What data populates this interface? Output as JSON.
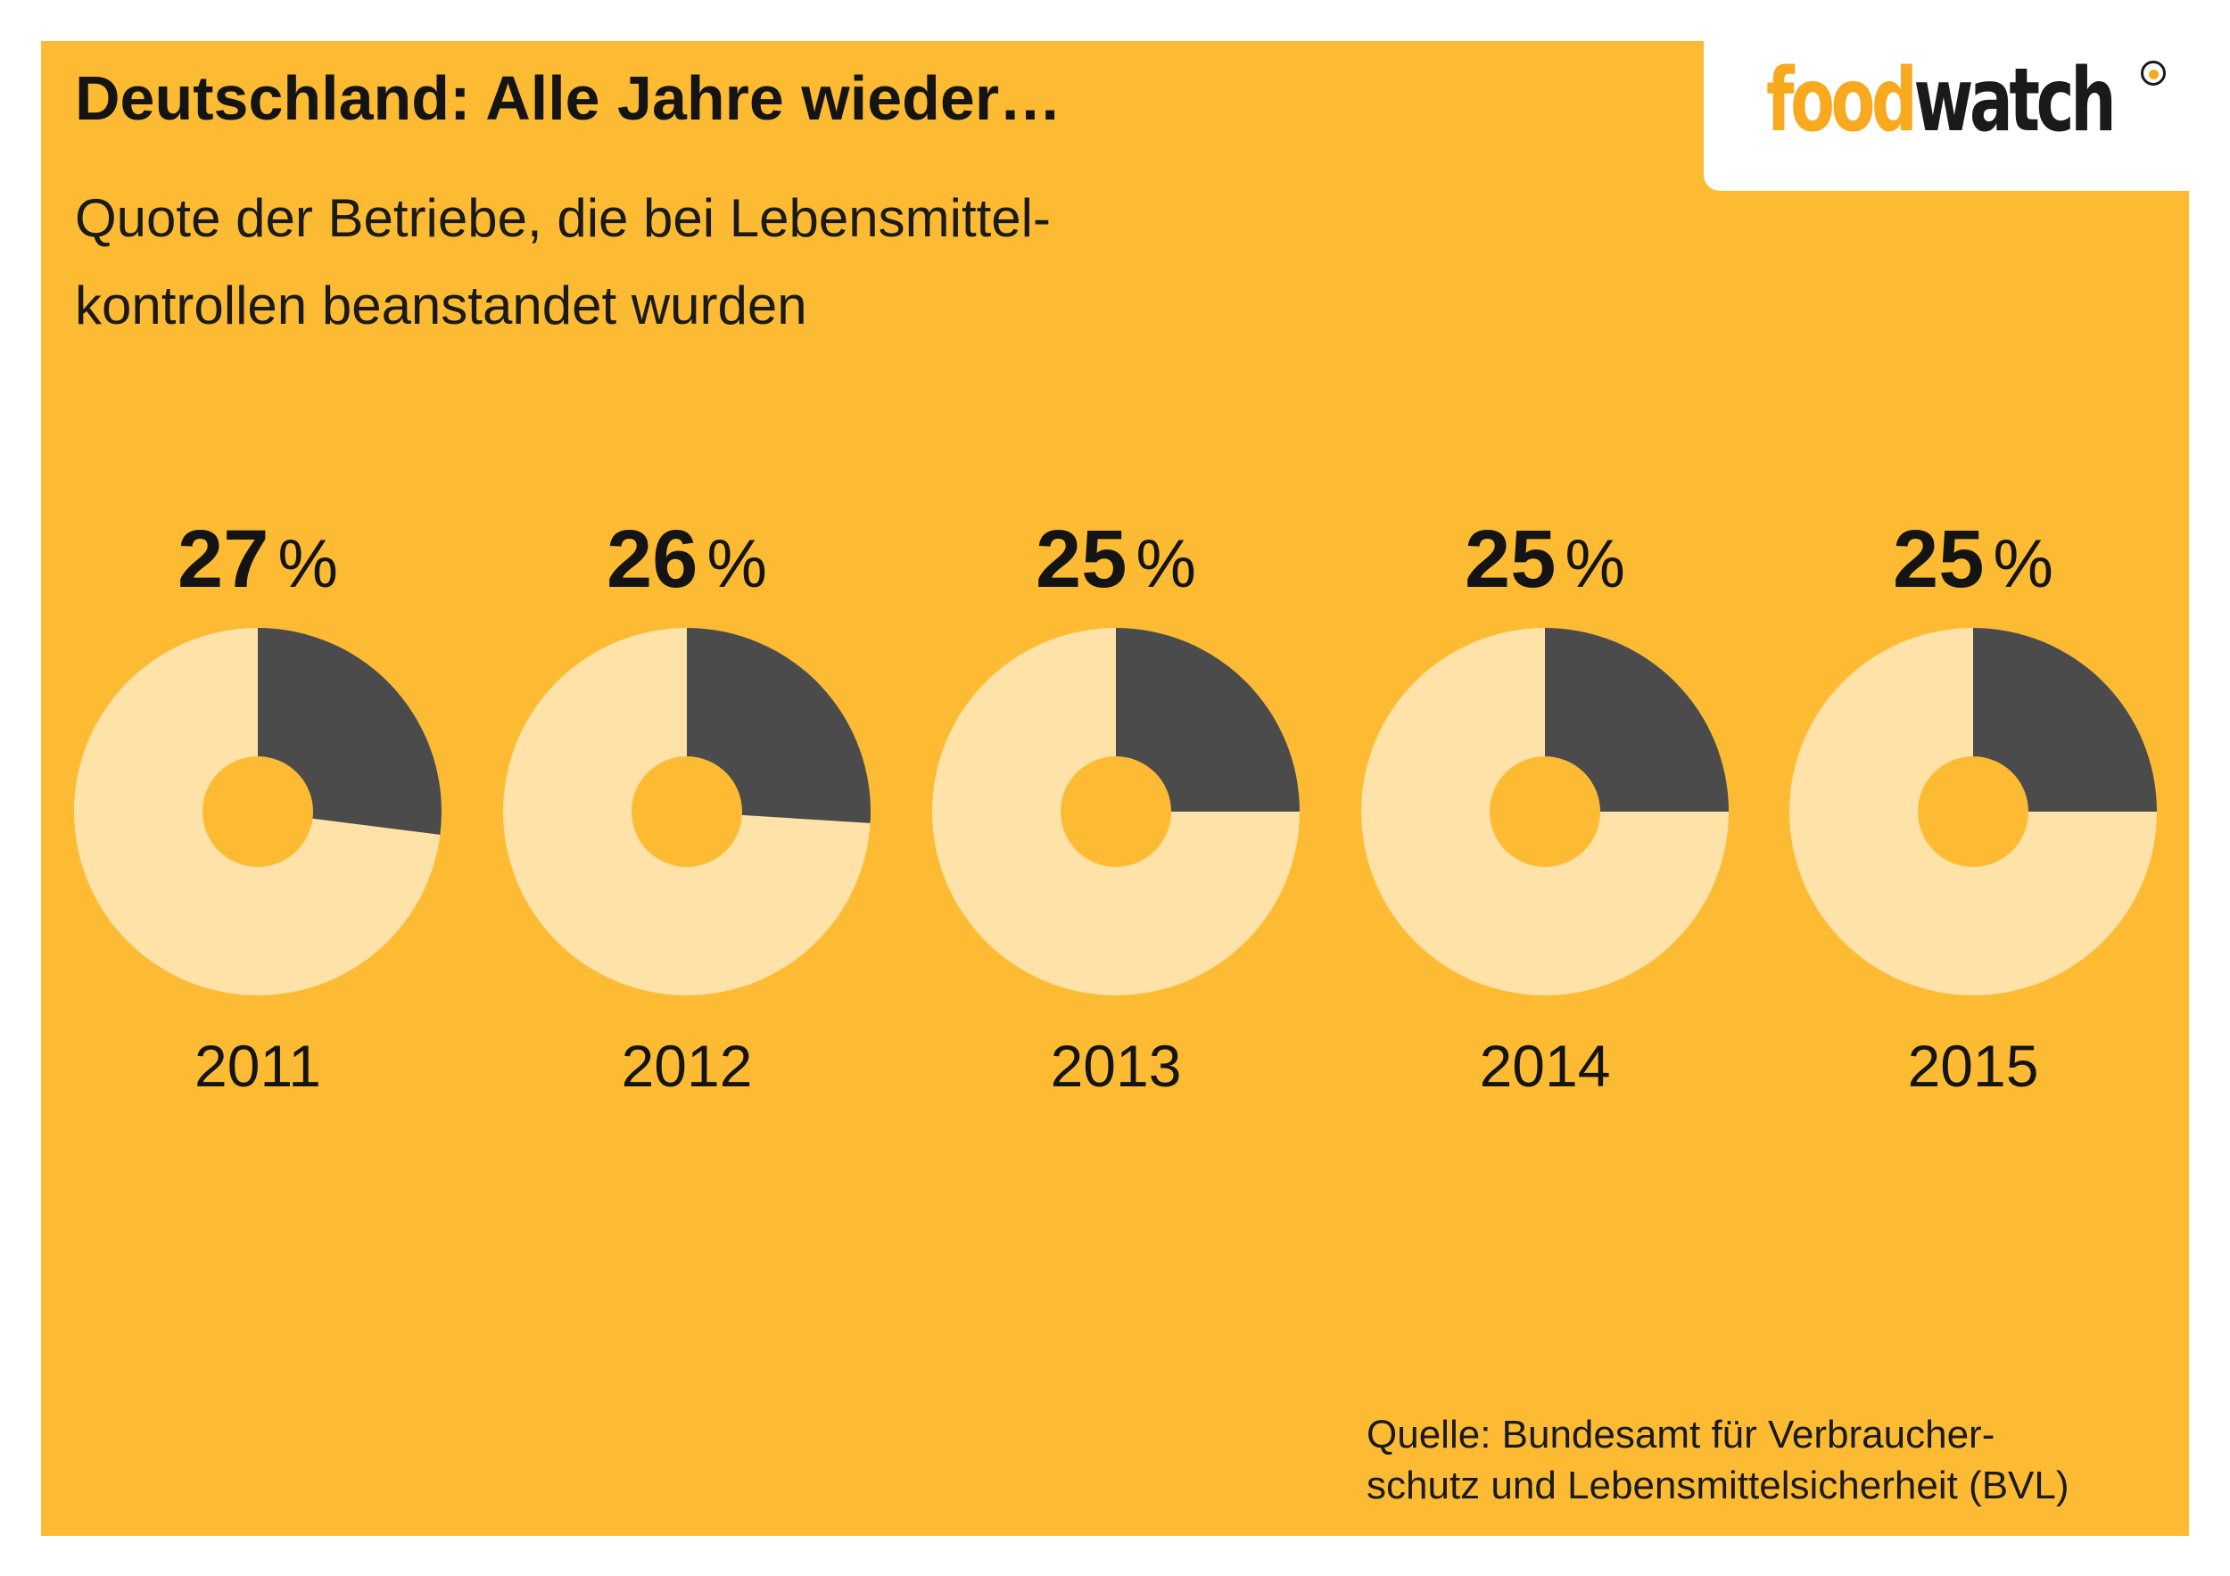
{
  "header": {
    "title": "Deutschland: Alle Jahre wieder…",
    "subtitle_lines": [
      "Quote der Betriebe, die bei Lebensmittel-",
      "kontrollen beanstandet wurden"
    ]
  },
  "logo": {
    "part1": "food",
    "part2": "watch"
  },
  "source_lines": [
    "Quelle: Bundesamt für Verbraucher-",
    "schutz und Lebensmittelsicherheit (BVL)"
  ],
  "colors": {
    "background": "#fcbb33",
    "highlight_slice": "#4b4b4b",
    "rest_slice": "#fee2a8",
    "text": "#141414",
    "logo_orange": "#f8a91d"
  },
  "chart_data": {
    "type": "pie",
    "style": "donut",
    "unit": "%",
    "categories": [
      "2011",
      "2012",
      "2013",
      "2014",
      "2015"
    ],
    "values": [
      27,
      26,
      25,
      25,
      25
    ],
    "value_labels": [
      "27",
      "26",
      "25",
      "25",
      "25"
    ]
  }
}
